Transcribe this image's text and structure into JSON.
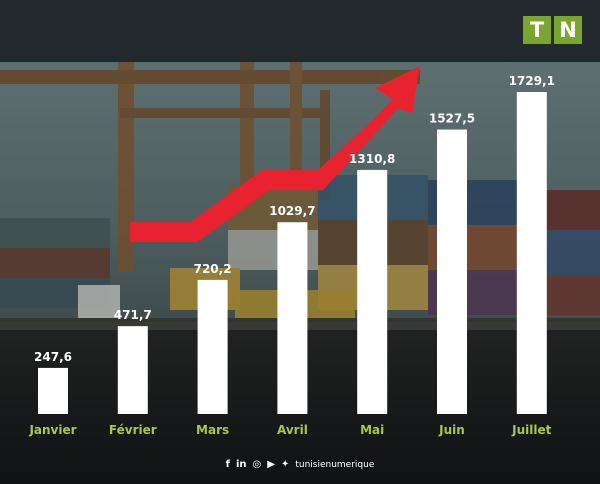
{
  "brand": {
    "logo_letters": [
      "T",
      "N"
    ],
    "logo_color": "#7aa52e"
  },
  "colors": {
    "bar": "#ffffff",
    "value_label": "#ffffff",
    "category_label": "#a8c84a",
    "arrow": "#e8222e"
  },
  "chart_data": {
    "type": "bar",
    "categories": [
      "Janvier",
      "Février",
      "Mars",
      "Avril",
      "Mai",
      "Juin",
      "Juillet"
    ],
    "values": [
      247.6,
      471.7,
      720.2,
      1029.7,
      1310.8,
      1527.5,
      1729.1
    ],
    "value_labels": [
      "247,6",
      "471,7",
      "720,2",
      "1029,7",
      "1310,8",
      "1527,5",
      "1729,1"
    ],
    "title": "",
    "xlabel": "",
    "ylabel": "",
    "ylim": [
      0,
      1729.1
    ],
    "grid": false,
    "legend": "none",
    "annotation": "red upward-trend arrow"
  },
  "footer": {
    "icons": [
      "facebook-icon",
      "linkedin-icon",
      "instagram-icon",
      "youtube-icon",
      "twitter-icon"
    ],
    "icon_glyphs": [
      "f",
      "in",
      "◎",
      "▶",
      "✦"
    ],
    "handle": "tunisienumerique"
  }
}
